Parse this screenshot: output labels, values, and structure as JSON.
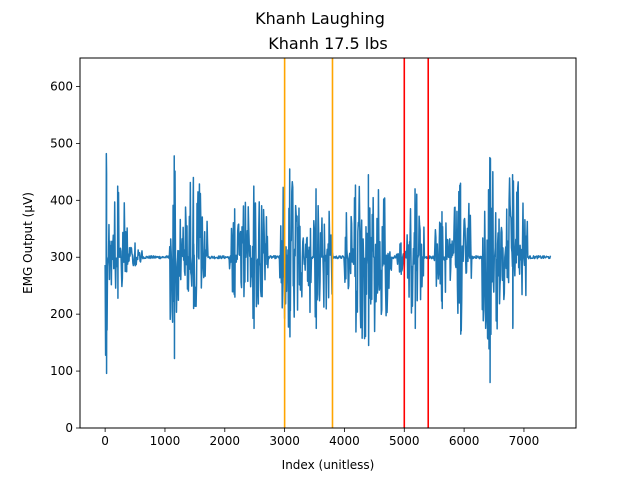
{
  "suptitle": "Khanh Laughing",
  "chart_data": {
    "type": "line",
    "title": "Khanh 17.5 lbs",
    "xlabel": "Index (unitless)",
    "ylabel": "EMG Output (μV)",
    "xlim": [
      -420,
      7870
    ],
    "ylim": [
      0,
      650
    ],
    "xticks": [
      0,
      1000,
      2000,
      3000,
      4000,
      5000,
      6000,
      7000
    ],
    "yticks": [
      0,
      100,
      200,
      300,
      400,
      500,
      600
    ],
    "grid": false,
    "series": [
      {
        "color": "#1f77b4",
        "baseline": 300,
        "x_range": [
          0,
          7450
        ],
        "bursts": [
          {
            "start": 0,
            "end": 40,
            "max": 482,
            "min": 96
          },
          {
            "start": 40,
            "end": 380,
            "max": 425,
            "min": 228
          },
          {
            "start": 380,
            "end": 620,
            "max": 325,
            "min": 285
          },
          {
            "start": 1080,
            "end": 1230,
            "max": 478,
            "min": 122
          },
          {
            "start": 1230,
            "end": 1720,
            "max": 440,
            "min": 210
          },
          {
            "start": 2080,
            "end": 2250,
            "max": 385,
            "min": 230
          },
          {
            "start": 2250,
            "end": 2720,
            "max": 425,
            "min": 175
          },
          {
            "start": 2920,
            "end": 3250,
            "max": 455,
            "min": 160
          },
          {
            "start": 3250,
            "end": 3800,
            "max": 420,
            "min": 175
          },
          {
            "start": 4000,
            "end": 4800,
            "max": 445,
            "min": 145
          },
          {
            "start": 4870,
            "end": 5020,
            "max": 325,
            "min": 270
          },
          {
            "start": 5030,
            "end": 5330,
            "max": 420,
            "min": 175
          },
          {
            "start": 5500,
            "end": 5760,
            "max": 380,
            "min": 210
          },
          {
            "start": 5760,
            "end": 6120,
            "max": 430,
            "min": 165
          },
          {
            "start": 6300,
            "end": 6560,
            "max": 475,
            "min": 80
          },
          {
            "start": 6560,
            "end": 7060,
            "max": 445,
            "min": 175
          }
        ]
      }
    ],
    "vlines": [
      {
        "x": 3000,
        "color": "#ffa500"
      },
      {
        "x": 3800,
        "color": "#ffa500"
      },
      {
        "x": 5000,
        "color": "#ff0000"
      },
      {
        "x": 5400,
        "color": "#ff0000"
      }
    ]
  }
}
